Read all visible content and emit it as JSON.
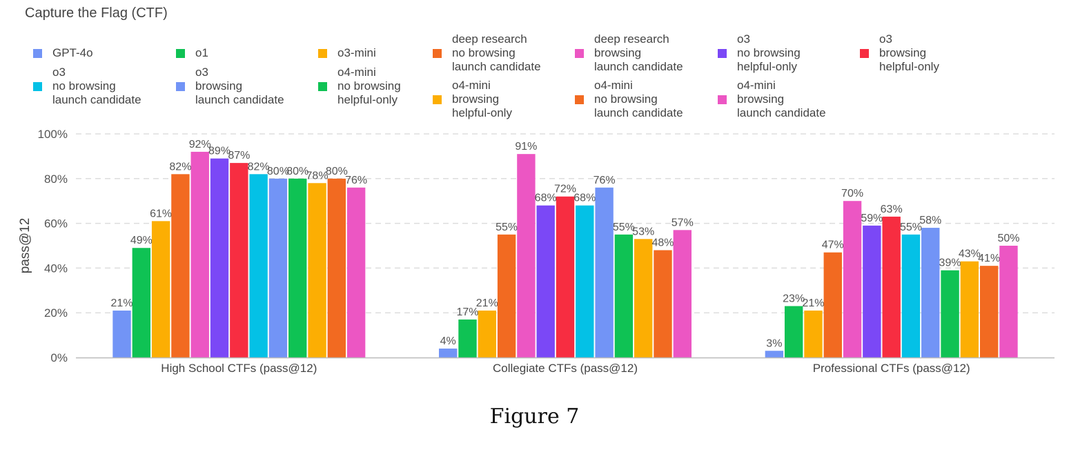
{
  "figure_caption": "Figure 7",
  "chart_data": {
    "type": "bar",
    "title": "Capture the Flag (CTF)",
    "ylabel": "pass@12",
    "xlabel": "",
    "ylim": [
      0,
      100
    ],
    "y_ticks": [
      "0%",
      "20%",
      "40%",
      "60%",
      "80%",
      "100%"
    ],
    "grid": true,
    "legend_position": "top",
    "categories": [
      "High School CTFs (pass@12)",
      "Collegiate CTFs (pass@12)",
      "Professional CTFs (pass@12)"
    ],
    "series": [
      {
        "name": "GPT-4o",
        "color": "#7294f6",
        "values": [
          21,
          4,
          3
        ],
        "labels": [
          "21%",
          "4%",
          "3%"
        ]
      },
      {
        "name": "o1",
        "color": "#0fc254",
        "values": [
          49,
          17,
          23
        ],
        "labels": [
          "49%",
          "17%",
          "23%"
        ]
      },
      {
        "name": "o3-mini",
        "color": "#fcae03",
        "values": [
          61,
          21,
          21
        ],
        "labels": [
          "61%",
          "21%",
          "21%"
        ]
      },
      {
        "name": "deep research\nno browsing\nlaunch candidate",
        "color": "#f26a21",
        "values": [
          82,
          55,
          47
        ],
        "labels": [
          "82%",
          "55%",
          "47%"
        ]
      },
      {
        "name": "deep research\nbrowsing\nlaunch candidate",
        "color": "#ec56c3",
        "values": [
          92,
          91,
          70
        ],
        "labels": [
          "92%",
          "91%",
          "70%"
        ]
      },
      {
        "name": "o3\nno browsing\nhelpful-only",
        "color": "#7b48f6",
        "values": [
          89,
          68,
          59
        ],
        "labels": [
          "89%",
          "68%",
          "59%"
        ]
      },
      {
        "name": "o3\nbrowsing\nhelpful-only",
        "color": "#f72d41",
        "values": [
          87,
          72,
          63
        ],
        "labels": [
          "87%",
          "72%",
          "63%"
        ]
      },
      {
        "name": "o3\nno browsing\nlaunch candidate",
        "color": "#04c1e6",
        "values": [
          82,
          68,
          55
        ],
        "labels": [
          "82%",
          "68%",
          "55%"
        ]
      },
      {
        "name": "o3\nbrowsing\nlaunch candidate",
        "color": "#7294f6",
        "values": [
          80,
          76,
          58
        ],
        "labels": [
          "80%",
          "76%",
          "58%"
        ]
      },
      {
        "name": "o4-mini\nno browsing\nhelpful-only",
        "color": "#0fc254",
        "values": [
          80,
          55,
          39
        ],
        "labels": [
          "80%",
          "55%",
          "39%"
        ]
      },
      {
        "name": "o4-mini\nbrowsing\nhelpful-only",
        "color": "#fcae03",
        "values": [
          78,
          53,
          43
        ],
        "labels": [
          "78%",
          "53%",
          "43%"
        ]
      },
      {
        "name": "o4-mini\nno browsing\nlaunch candidate",
        "color": "#f26a21",
        "values": [
          80,
          48,
          41
        ],
        "labels": [
          "80%",
          "48%",
          "41%"
        ]
      },
      {
        "name": "o4-mini\nbrowsing\nlaunch candidate",
        "color": "#ec56c3",
        "values": [
          76,
          57,
          50
        ],
        "labels": [
          "76%",
          "57%",
          "50%"
        ]
      }
    ]
  }
}
